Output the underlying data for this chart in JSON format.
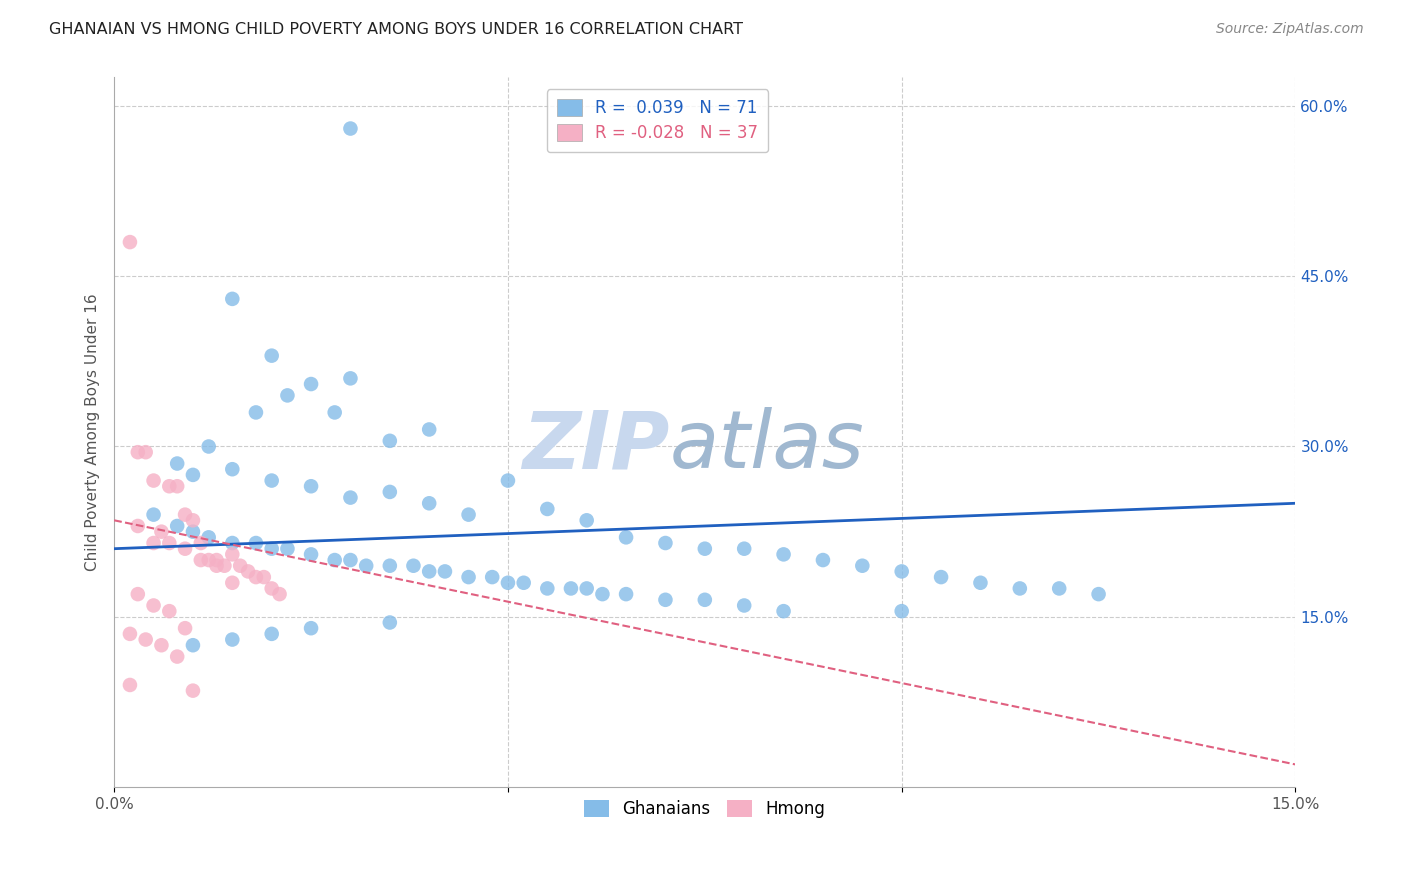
{
  "title": "GHANAIAN VS HMONG CHILD POVERTY AMONG BOYS UNDER 16 CORRELATION CHART",
  "source": "Source: ZipAtlas.com",
  "ylabel": "Child Poverty Among Boys Under 16",
  "xmin": 0.0,
  "xmax": 0.15,
  "ymin": 0.0,
  "ymax": 0.625,
  "yticks_right": [
    0.15,
    0.3,
    0.45,
    0.6
  ],
  "ytick_labels_right": [
    "15.0%",
    "30.0%",
    "45.0%",
    "60.0%"
  ],
  "ghanaian_R": 0.039,
  "ghanaian_N": 71,
  "hmong_R": -0.028,
  "hmong_N": 37,
  "color_ghanaian": "#85bce8",
  "color_hmong": "#f5b0c5",
  "color_line_ghanaian": "#2060c0",
  "color_line_hmong": "#e06080",
  "legend_text_color_g": "#2060c0",
  "legend_text_color_h": "#e06080",
  "watermark": "ZIPatlas",
  "watermark_color": "#ccd8e8",
  "background_color": "#ffffff",
  "grid_color": "#cccccc",
  "ghanaian_x": [
    0.03,
    0.015,
    0.02,
    0.025,
    0.03,
    0.022,
    0.028,
    0.035,
    0.04,
    0.018,
    0.012,
    0.008,
    0.01,
    0.015,
    0.02,
    0.025,
    0.03,
    0.035,
    0.04,
    0.045,
    0.05,
    0.055,
    0.06,
    0.065,
    0.07,
    0.075,
    0.08,
    0.085,
    0.09,
    0.095,
    0.1,
    0.105,
    0.11,
    0.115,
    0.12,
    0.125,
    0.005,
    0.008,
    0.01,
    0.012,
    0.015,
    0.018,
    0.02,
    0.022,
    0.025,
    0.028,
    0.03,
    0.032,
    0.035,
    0.038,
    0.04,
    0.042,
    0.045,
    0.048,
    0.05,
    0.052,
    0.055,
    0.058,
    0.06,
    0.062,
    0.065,
    0.07,
    0.075,
    0.08,
    0.085,
    0.035,
    0.025,
    0.02,
    0.015,
    0.01,
    0.1
  ],
  "ghanaian_y": [
    0.58,
    0.43,
    0.38,
    0.355,
    0.36,
    0.345,
    0.33,
    0.305,
    0.315,
    0.33,
    0.3,
    0.285,
    0.275,
    0.28,
    0.27,
    0.265,
    0.255,
    0.26,
    0.25,
    0.24,
    0.27,
    0.245,
    0.235,
    0.22,
    0.215,
    0.21,
    0.21,
    0.205,
    0.2,
    0.195,
    0.19,
    0.185,
    0.18,
    0.175,
    0.175,
    0.17,
    0.24,
    0.23,
    0.225,
    0.22,
    0.215,
    0.215,
    0.21,
    0.21,
    0.205,
    0.2,
    0.2,
    0.195,
    0.195,
    0.195,
    0.19,
    0.19,
    0.185,
    0.185,
    0.18,
    0.18,
    0.175,
    0.175,
    0.175,
    0.17,
    0.17,
    0.165,
    0.165,
    0.16,
    0.155,
    0.145,
    0.14,
    0.135,
    0.13,
    0.125,
    0.155
  ],
  "hmong_x": [
    0.002,
    0.003,
    0.004,
    0.005,
    0.006,
    0.007,
    0.008,
    0.009,
    0.01,
    0.011,
    0.012,
    0.013,
    0.014,
    0.015,
    0.016,
    0.017,
    0.018,
    0.019,
    0.02,
    0.021,
    0.003,
    0.005,
    0.007,
    0.009,
    0.011,
    0.013,
    0.015,
    0.003,
    0.005,
    0.007,
    0.009,
    0.002,
    0.004,
    0.006,
    0.008,
    0.002,
    0.01
  ],
  "hmong_y": [
    0.48,
    0.295,
    0.295,
    0.27,
    0.225,
    0.265,
    0.265,
    0.24,
    0.235,
    0.215,
    0.2,
    0.2,
    0.195,
    0.205,
    0.195,
    0.19,
    0.185,
    0.185,
    0.175,
    0.17,
    0.23,
    0.215,
    0.215,
    0.21,
    0.2,
    0.195,
    0.18,
    0.17,
    0.16,
    0.155,
    0.14,
    0.135,
    0.13,
    0.125,
    0.115,
    0.09,
    0.085
  ],
  "line_g_x0": 0.0,
  "line_g_x1": 0.15,
  "line_g_y0": 0.21,
  "line_g_y1": 0.25,
  "line_h_x0": 0.0,
  "line_h_x1": 0.15,
  "line_h_y0": 0.235,
  "line_h_y1": 0.02
}
